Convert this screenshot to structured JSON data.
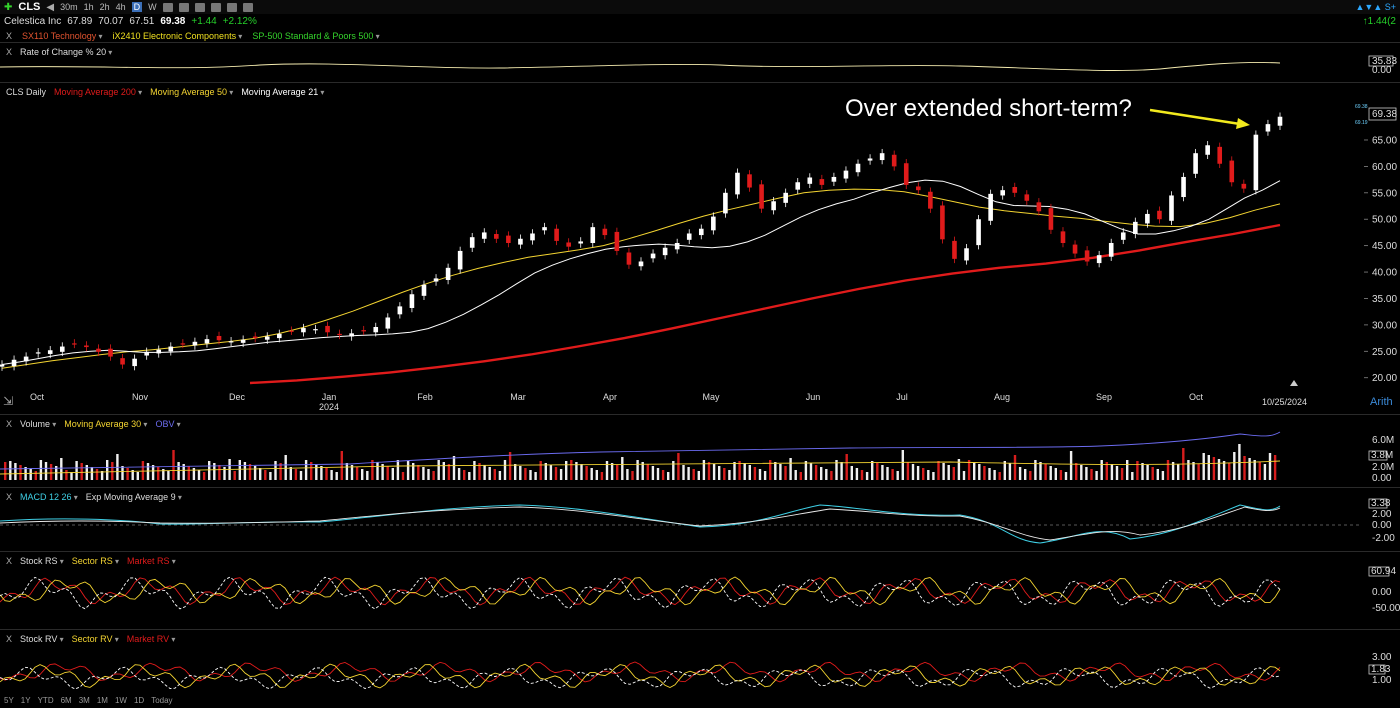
{
  "header": {
    "symbol": "CLS",
    "timeframes": [
      "30m",
      "1h",
      "2h",
      "4h",
      "D",
      "W"
    ],
    "active_timeframe": "D",
    "right_value": "1.44(2"
  },
  "quote": {
    "name": "Celestica Inc",
    "open": "67.89",
    "high": "70.07",
    "low": "67.51",
    "last": "69.38",
    "change": "+1.44",
    "change_pct": "+2.12%"
  },
  "groups": {
    "sector": "SX110 Technology",
    "industry": "iX2410 Electronic Components",
    "index": "SP-500 Standard & Poors 500",
    "sector_color": "#e0532f",
    "industry_color": "#f0e020",
    "index_color": "#35d52c"
  },
  "roc": {
    "label": "Rate of Change % 20",
    "value": "35.83",
    "zero": "0.00"
  },
  "price": {
    "label": "CLS Daily",
    "ma200": "Moving Average 200",
    "ma50": "Moving Average 50",
    "ma21": "Moving Average 21",
    "last_label": "69.38",
    "annotation": "Over extended short-term?",
    "date_label": "10/25/2024",
    "scale": "Arith",
    "ma_small_top": "69.38",
    "ma_small_bottom": "69.19"
  },
  "volume": {
    "label": "Volume",
    "ma": "Moving Average 30",
    "obv": "OBV",
    "ticks": [
      "6.0M",
      "3.8M",
      "2.0M",
      "0.00"
    ]
  },
  "macd": {
    "label": "MACD 12 26",
    "signal": "Exp Moving Average 9",
    "ticks": [
      "3.38",
      "2.00",
      "0.00",
      "-2.00"
    ]
  },
  "rs": {
    "label": "Stock RS",
    "sector": "Sector RS",
    "market": "Market RS",
    "ticks": [
      "60.94",
      "0.00",
      "-50.00"
    ]
  },
  "rv": {
    "label": "Stock RV",
    "sector": "Sector RV",
    "market": "Market RV",
    "ticks": [
      "3.00",
      "1.83",
      "1.00"
    ]
  },
  "range_buttons": [
    "5Y",
    "1Y",
    "YTD",
    "6M",
    "3M",
    "1M",
    "1W",
    "1D",
    "Today"
  ],
  "chart_data": {
    "type": "line",
    "title": "CLS Daily",
    "x_tick_labels": [
      "Oct",
      "Nov",
      "Dec",
      "Jan",
      "2024",
      "Feb",
      "Mar",
      "Apr",
      "May",
      "Jun",
      "Jul",
      "Aug",
      "Sep",
      "Oct"
    ],
    "y_tick_labels": [
      "65.00",
      "60.00",
      "55.00",
      "50.00",
      "45.00",
      "40.00",
      "35.00",
      "30.00",
      "25.00",
      "20.00"
    ],
    "ylim": [
      19,
      72
    ],
    "series": [
      {
        "name": "CLS Daily",
        "color": "#ffffff",
        "values": [
          22.5,
          23.4,
          24.0,
          24.8,
          25.2,
          25.9,
          26.4,
          25.8,
          24.9,
          24.0,
          22.5,
          23.6,
          24.9,
          25.3,
          25.9,
          26.4,
          26.8,
          27.3,
          27.1,
          26.9,
          27.2,
          27.5,
          27.8,
          28.3,
          28.9,
          29.4,
          29.2,
          28.6,
          28.1,
          28.4,
          28.9,
          29.6,
          31.4,
          33.5,
          35.8,
          37.6,
          38.8,
          40.8,
          44.0,
          46.6,
          47.5,
          46.3,
          45.5,
          46.3,
          47.3,
          48.5,
          45.9,
          44.8,
          45.8,
          48.5,
          47.0,
          44.0,
          41.4,
          42.0,
          43.5,
          44.6,
          45.5,
          47.3,
          48.2,
          50.5,
          55.0,
          58.8,
          56.0,
          52.0,
          53.4,
          55.0,
          57.0,
          57.9,
          56.5,
          58.0,
          59.2,
          60.5,
          61.5,
          62.5,
          60.0,
          56.5,
          55.5,
          52.0,
          46.2,
          42.5,
          44.5,
          50.0,
          54.8,
          55.5,
          55.0,
          53.5,
          51.5,
          48.0,
          45.5,
          43.5,
          42.0,
          43.2,
          45.5,
          47.5,
          49.5,
          51.0,
          50.0,
          54.5,
          58.0,
          62.5,
          64.0,
          60.5,
          57.0,
          55.8,
          66.0,
          68.0,
          69.4
        ]
      },
      {
        "name": "Moving Average 21",
        "color": "#ffffff",
        "values": [
          22.5,
          23.0,
          23.6,
          24.2,
          24.7,
          25.0,
          25.2,
          25.0,
          24.8,
          24.8,
          24.9,
          25.1,
          25.5,
          25.9,
          26.3,
          26.7,
          27.0,
          27.3,
          27.6,
          27.8,
          28.0,
          28.1,
          28.3,
          28.6,
          29.3,
          30.5,
          32.0,
          33.8,
          35.7,
          37.8,
          39.8,
          41.3,
          42.5,
          43.5,
          44.3,
          44.8,
          45.1,
          45.3,
          45.1,
          44.8,
          44.6,
          44.9,
          45.7,
          47.0,
          48.7,
          50.4,
          51.8,
          52.9,
          53.8,
          55.0,
          56.0,
          56.9,
          57.4,
          57.2,
          56.2,
          54.7,
          53.3,
          52.6,
          52.5,
          52.4,
          51.9,
          51.0,
          49.6,
          48.2,
          47.2,
          47.2,
          47.8,
          48.7,
          50.0,
          52.0,
          54.0,
          55.5,
          57.3
        ]
      },
      {
        "name": "Moving Average 50",
        "color": "#f3d431",
        "values": [
          21.8,
          22.5,
          23.2,
          23.8,
          24.4,
          24.9,
          25.3,
          25.8,
          26.3,
          26.8,
          27.4,
          28.3,
          29.5,
          31.0,
          32.6,
          34.4,
          36.2,
          37.9,
          39.4,
          40.7,
          41.8,
          42.8,
          43.5,
          44.2,
          45.0,
          46.3,
          47.7,
          49.2,
          50.6,
          51.8,
          52.9,
          54.0,
          55.0,
          55.5,
          55.7,
          55.6,
          55.2,
          54.3,
          53.3,
          52.3,
          51.6,
          51.1,
          50.6,
          50.2,
          49.6,
          49.1,
          48.7,
          48.6,
          49.2,
          50.3,
          51.7,
          52.9
        ]
      },
      {
        "name": "Moving Average 200",
        "color": "#e01b1b",
        "values": [
          19.0,
          19.5,
          20.2,
          21.0,
          22.0,
          23.1,
          24.4,
          25.9,
          27.5,
          29.3,
          31.2,
          33.1,
          35.0,
          36.8,
          38.4,
          39.7,
          40.8,
          41.6,
          42.7,
          44.1,
          45.7,
          47.2,
          48.9
        ]
      }
    ]
  }
}
